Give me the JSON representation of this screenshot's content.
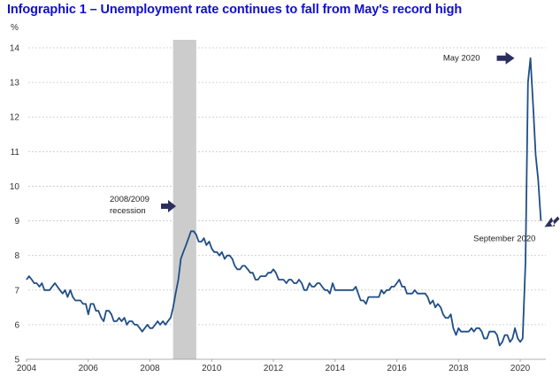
{
  "title": "Infographic 1 –  Unemployment rate continues to fall from May's record high",
  "colors": {
    "title": "#1010cc",
    "line": "#1f4e86",
    "recession": "#cccccc",
    "arrow": "#2c2f5e",
    "grid": "#c8c8c8"
  },
  "chart_data": {
    "type": "line",
    "title": "Infographic 1 –  Unemployment rate continues to fall from May's record high",
    "ylabel": "%",
    "xlabel": "",
    "xlim": [
      2004,
      2020.83
    ],
    "ylim": [
      5,
      14
    ],
    "x_ticks": [
      "2004",
      "2006",
      "2008",
      "2010",
      "2012",
      "2014",
      "2016",
      "2018",
      "2020"
    ],
    "y_ticks": [
      "5",
      "6",
      "7",
      "8",
      "9",
      "10",
      "11",
      "12",
      "13",
      "14"
    ],
    "grid": "horizontal dashed",
    "recession": {
      "start": 2008.75,
      "end": 2009.5,
      "label_line1": "2008/2009",
      "label_line2": "recession"
    },
    "annotations": [
      {
        "text": "May 2020",
        "x": 2020.33,
        "y": 13.7
      },
      {
        "text": "September 2020",
        "x": 2020.67,
        "y": 9.0
      }
    ],
    "series": [
      {
        "points": [
          [
            2004.0,
            7.3
          ],
          [
            2004.08,
            7.4
          ],
          [
            2004.17,
            7.3
          ],
          [
            2004.25,
            7.2
          ],
          [
            2004.33,
            7.2
          ],
          [
            2004.42,
            7.1
          ],
          [
            2004.5,
            7.2
          ],
          [
            2004.58,
            7.0
          ],
          [
            2004.67,
            7.0
          ],
          [
            2004.75,
            7.0
          ],
          [
            2004.83,
            7.1
          ],
          [
            2004.92,
            7.2
          ],
          [
            2005.0,
            7.1
          ],
          [
            2005.08,
            7.0
          ],
          [
            2005.17,
            6.9
          ],
          [
            2005.25,
            7.0
          ],
          [
            2005.33,
            6.8
          ],
          [
            2005.42,
            7.0
          ],
          [
            2005.5,
            6.8
          ],
          [
            2005.58,
            6.7
          ],
          [
            2005.67,
            6.7
          ],
          [
            2005.75,
            6.7
          ],
          [
            2005.83,
            6.6
          ],
          [
            2005.92,
            6.6
          ],
          [
            2006.0,
            6.3
          ],
          [
            2006.08,
            6.6
          ],
          [
            2006.17,
            6.6
          ],
          [
            2006.25,
            6.4
          ],
          [
            2006.33,
            6.4
          ],
          [
            2006.42,
            6.2
          ],
          [
            2006.5,
            6.1
          ],
          [
            2006.58,
            6.4
          ],
          [
            2006.67,
            6.4
          ],
          [
            2006.75,
            6.3
          ],
          [
            2006.83,
            6.1
          ],
          [
            2006.92,
            6.1
          ],
          [
            2007.0,
            6.2
          ],
          [
            2007.08,
            6.1
          ],
          [
            2007.17,
            6.2
          ],
          [
            2007.25,
            6.0
          ],
          [
            2007.33,
            6.1
          ],
          [
            2007.42,
            6.1
          ],
          [
            2007.5,
            6.0
          ],
          [
            2007.58,
            6.0
          ],
          [
            2007.67,
            5.9
          ],
          [
            2007.75,
            5.8
          ],
          [
            2007.83,
            5.9
          ],
          [
            2007.92,
            6.0
          ],
          [
            2008.0,
            5.9
          ],
          [
            2008.08,
            5.9
          ],
          [
            2008.17,
            6.0
          ],
          [
            2008.25,
            6.1
          ],
          [
            2008.33,
            6.0
          ],
          [
            2008.42,
            6.1
          ],
          [
            2008.5,
            6.0
          ],
          [
            2008.58,
            6.1
          ],
          [
            2008.67,
            6.2
          ],
          [
            2008.75,
            6.5
          ],
          [
            2008.83,
            6.9
          ],
          [
            2008.92,
            7.3
          ],
          [
            2009.0,
            7.9
          ],
          [
            2009.08,
            8.1
          ],
          [
            2009.17,
            8.3
          ],
          [
            2009.25,
            8.5
          ],
          [
            2009.33,
            8.7
          ],
          [
            2009.42,
            8.7
          ],
          [
            2009.5,
            8.6
          ],
          [
            2009.58,
            8.4
          ],
          [
            2009.67,
            8.4
          ],
          [
            2009.75,
            8.5
          ],
          [
            2009.83,
            8.3
          ],
          [
            2009.92,
            8.4
          ],
          [
            2010.0,
            8.2
          ],
          [
            2010.08,
            8.1
          ],
          [
            2010.17,
            8.1
          ],
          [
            2010.25,
            8.0
          ],
          [
            2010.33,
            8.1
          ],
          [
            2010.42,
            7.9
          ],
          [
            2010.5,
            8.0
          ],
          [
            2010.58,
            8.0
          ],
          [
            2010.67,
            7.9
          ],
          [
            2010.75,
            7.7
          ],
          [
            2010.83,
            7.6
          ],
          [
            2010.92,
            7.6
          ],
          [
            2011.0,
            7.7
          ],
          [
            2011.08,
            7.7
          ],
          [
            2011.17,
            7.6
          ],
          [
            2011.25,
            7.5
          ],
          [
            2011.33,
            7.5
          ],
          [
            2011.42,
            7.3
          ],
          [
            2011.5,
            7.3
          ],
          [
            2011.58,
            7.4
          ],
          [
            2011.67,
            7.4
          ],
          [
            2011.75,
            7.4
          ],
          [
            2011.83,
            7.5
          ],
          [
            2011.92,
            7.5
          ],
          [
            2012.0,
            7.6
          ],
          [
            2012.08,
            7.5
          ],
          [
            2012.17,
            7.3
          ],
          [
            2012.25,
            7.3
          ],
          [
            2012.33,
            7.3
          ],
          [
            2012.42,
            7.2
          ],
          [
            2012.5,
            7.3
          ],
          [
            2012.58,
            7.3
          ],
          [
            2012.67,
            7.2
          ],
          [
            2012.75,
            7.2
          ],
          [
            2012.83,
            7.3
          ],
          [
            2012.92,
            7.2
          ],
          [
            2013.0,
            7.0
          ],
          [
            2013.08,
            7.0
          ],
          [
            2013.17,
            7.2
          ],
          [
            2013.25,
            7.1
          ],
          [
            2013.33,
            7.1
          ],
          [
            2013.42,
            7.2
          ],
          [
            2013.5,
            7.2
          ],
          [
            2013.58,
            7.1
          ],
          [
            2013.67,
            7.0
          ],
          [
            2013.75,
            7.0
          ],
          [
            2013.83,
            6.9
          ],
          [
            2013.92,
            7.2
          ],
          [
            2014.0,
            7.0
          ],
          [
            2014.08,
            7.0
          ],
          [
            2014.17,
            7.0
          ],
          [
            2014.25,
            7.0
          ],
          [
            2014.33,
            7.0
          ],
          [
            2014.42,
            7.0
          ],
          [
            2014.5,
            7.0
          ],
          [
            2014.58,
            7.0
          ],
          [
            2014.67,
            7.1
          ],
          [
            2014.75,
            6.9
          ],
          [
            2014.83,
            6.7
          ],
          [
            2014.92,
            6.7
          ],
          [
            2015.0,
            6.6
          ],
          [
            2015.08,
            6.8
          ],
          [
            2015.17,
            6.8
          ],
          [
            2015.25,
            6.8
          ],
          [
            2015.33,
            6.8
          ],
          [
            2015.42,
            6.8
          ],
          [
            2015.5,
            7.0
          ],
          [
            2015.58,
            6.9
          ],
          [
            2015.67,
            7.0
          ],
          [
            2015.75,
            7.0
          ],
          [
            2015.83,
            7.1
          ],
          [
            2015.92,
            7.1
          ],
          [
            2016.0,
            7.2
          ],
          [
            2016.08,
            7.3
          ],
          [
            2016.17,
            7.1
          ],
          [
            2016.25,
            7.1
          ],
          [
            2016.33,
            6.9
          ],
          [
            2016.42,
            6.9
          ],
          [
            2016.5,
            6.9
          ],
          [
            2016.58,
            7.0
          ],
          [
            2016.67,
            6.9
          ],
          [
            2016.75,
            6.9
          ],
          [
            2016.83,
            6.9
          ],
          [
            2016.92,
            6.9
          ],
          [
            2017.0,
            6.8
          ],
          [
            2017.08,
            6.6
          ],
          [
            2017.17,
            6.7
          ],
          [
            2017.25,
            6.5
          ],
          [
            2017.33,
            6.6
          ],
          [
            2017.42,
            6.5
          ],
          [
            2017.5,
            6.3
          ],
          [
            2017.58,
            6.2
          ],
          [
            2017.67,
            6.2
          ],
          [
            2017.75,
            6.3
          ],
          [
            2017.83,
            5.9
          ],
          [
            2017.92,
            5.7
          ],
          [
            2018.0,
            5.9
          ],
          [
            2018.08,
            5.8
          ],
          [
            2018.17,
            5.8
          ],
          [
            2018.25,
            5.8
          ],
          [
            2018.33,
            5.8
          ],
          [
            2018.42,
            5.9
          ],
          [
            2018.5,
            5.8
          ],
          [
            2018.58,
            5.9
          ],
          [
            2018.67,
            5.9
          ],
          [
            2018.75,
            5.8
          ],
          [
            2018.83,
            5.6
          ],
          [
            2018.92,
            5.6
          ],
          [
            2019.0,
            5.8
          ],
          [
            2019.08,
            5.8
          ],
          [
            2019.17,
            5.8
          ],
          [
            2019.25,
            5.7
          ],
          [
            2019.33,
            5.4
          ],
          [
            2019.42,
            5.5
          ],
          [
            2019.5,
            5.7
          ],
          [
            2019.58,
            5.7
          ],
          [
            2019.67,
            5.5
          ],
          [
            2019.75,
            5.6
          ],
          [
            2019.83,
            5.9
          ],
          [
            2019.92,
            5.6
          ],
          [
            2020.0,
            5.5
          ],
          [
            2020.08,
            5.6
          ],
          [
            2020.17,
            7.8
          ],
          [
            2020.25,
            13.0
          ],
          [
            2020.33,
            13.7
          ],
          [
            2020.42,
            12.3
          ],
          [
            2020.5,
            10.9
          ],
          [
            2020.58,
            10.2
          ],
          [
            2020.67,
            9.0
          ]
        ]
      }
    ]
  }
}
